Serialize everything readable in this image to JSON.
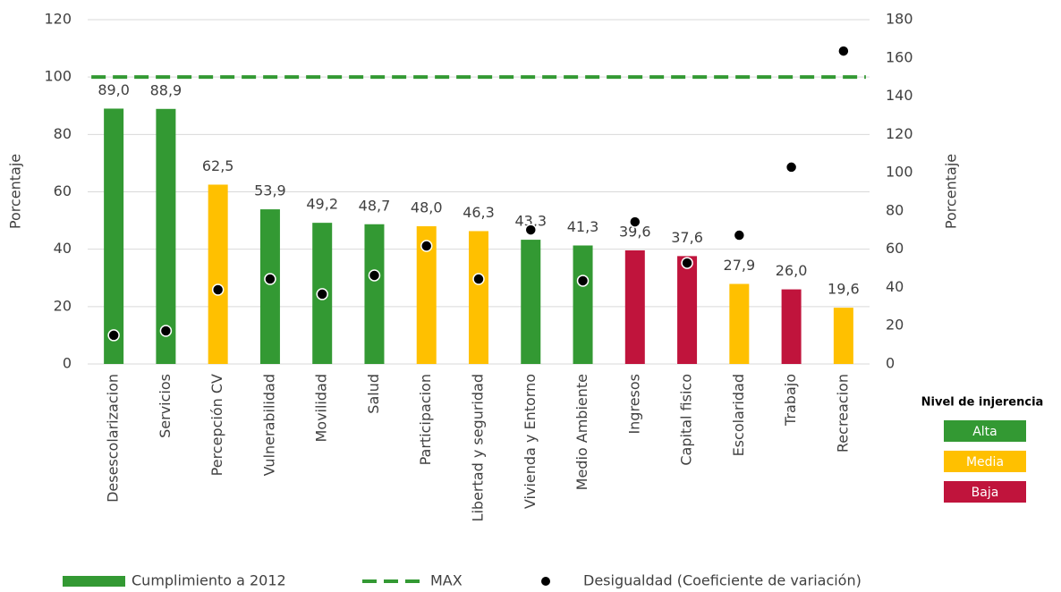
{
  "chart_data": {
    "type": "bar",
    "categories": [
      "Desescolarizacion",
      "Servicios",
      "Percepción CV",
      "Vulnerabilidad",
      "Movilidad",
      "Salud",
      "Participacion",
      "Libertad y seguridad",
      "Vivienda y Entorno",
      "Medio Ambiente",
      "Ingresos",
      "Capital fisico",
      "Escolaridad",
      "Trabajo",
      "Recreacion"
    ],
    "series": [
      {
        "name": "Cumplimiento a 2012",
        "type": "bar",
        "values": [
          89.0,
          88.9,
          62.5,
          53.9,
          49.2,
          48.7,
          48.0,
          46.3,
          43.3,
          41.3,
          39.6,
          37.6,
          27.9,
          26.0,
          19.6
        ],
        "value_labels": [
          "89,0",
          "88,9",
          "62,5",
          "53,9",
          "49,2",
          "48,7",
          "48,0",
          "46,3",
          "43,3",
          "41,3",
          "39,6",
          "37,6",
          "27,9",
          "26,0",
          "19,6"
        ],
        "colors": [
          "#339933",
          "#339933",
          "#ffc000",
          "#339933",
          "#339933",
          "#339933",
          "#ffc000",
          "#ffc000",
          "#339933",
          "#339933",
          "#c0143c",
          "#c0143c",
          "#ffc000",
          "#c0143c",
          "#ffc000"
        ],
        "color": "#339933"
      },
      {
        "name": "MAX",
        "type": "line",
        "color": "#339933",
        "values": [
          100,
          100,
          100,
          100,
          100,
          100,
          100,
          100,
          100,
          100,
          100,
          100,
          100,
          100,
          100
        ]
      },
      {
        "name": "Desigualdad (Coeficiente de variación)",
        "type": "scatter",
        "axis": "y2",
        "color": "#000000",
        "values": [
          15.0,
          17.3,
          38.8,
          44.4,
          36.5,
          46.3,
          61.7,
          44.4,
          70.1,
          43.5,
          74.3,
          52.8,
          67.3,
          102.9,
          163.6
        ]
      }
    ],
    "ylabel": "Porcentaje",
    "y2label": "Porcentaje",
    "ylim": [
      0,
      120
    ],
    "yticks": [
      0,
      20,
      40,
      60,
      80,
      100,
      120
    ],
    "y2lim": [
      0,
      180
    ],
    "y2ticks": [
      0,
      20,
      40,
      60,
      80,
      100,
      120,
      140,
      160,
      180
    ],
    "grid": true,
    "injerencia": {
      "title": "Nivel de injerencia",
      "items": [
        {
          "label": "Alta",
          "color": "#339933"
        },
        {
          "label": "Media",
          "color": "#ffc000"
        },
        {
          "label": "Baja",
          "color": "#c0143c"
        }
      ]
    }
  }
}
